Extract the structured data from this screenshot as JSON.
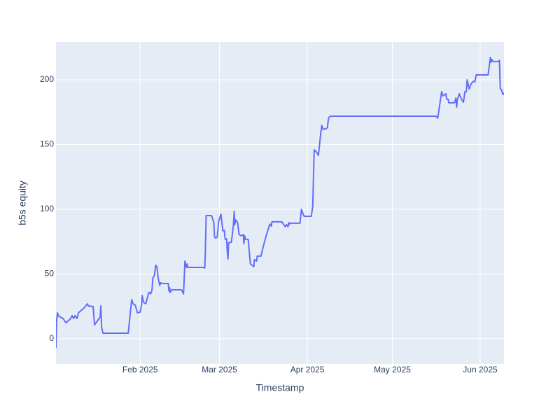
{
  "chart_data": {
    "type": "line",
    "x_label": "Timestamp",
    "y_label": "b5s equity",
    "xlim": [
      1.3,
      159.4
    ],
    "ylim": [
      -19.5,
      229.2
    ],
    "xticks": [
      {
        "value": 31,
        "label": "Feb 2025"
      },
      {
        "value": 59,
        "label": "Mar 2025"
      },
      {
        "value": 90,
        "label": "Apr 2025"
      },
      {
        "value": 120,
        "label": "May 2025"
      },
      {
        "value": 151,
        "label": "Jun 2025"
      }
    ],
    "yticks": [
      0,
      50,
      100,
      150,
      200
    ],
    "grid": true,
    "series": [
      {
        "color": "#636efa",
        "x": [
          1.3,
          1.5,
          1.8,
          2.3,
          3.8,
          4.8,
          6.3,
          7.0,
          7.5,
          8.0,
          8.7,
          9.2,
          11.2,
          12.4,
          12.7,
          14.4,
          14.9,
          16.9,
          17.1,
          17.4,
          17.9,
          26.8,
          28.0,
          28.5,
          29.3,
          30.0,
          31.0,
          31.5,
          31.7,
          32.2,
          33.0,
          34.0,
          34.2,
          34.7,
          35.2,
          35.5,
          36.0,
          36.5,
          36.9,
          37.4,
          37.9,
          38.2,
          38.9,
          40.9,
          41.2,
          41.4,
          41.6,
          42.1,
          45.6,
          46.3,
          46.8,
          47.3,
          47.6,
          47.8,
          53.3,
          53.8,
          54.0,
          54.3,
          56.2,
          57.0,
          57.2,
          57.5,
          58.2,
          58.7,
          59.5,
          60.2,
          60.7,
          61.0,
          61.5,
          61.7,
          62.0,
          62.2,
          63.2,
          63.9,
          64.2,
          64.4,
          64.7,
          65.4,
          65.9,
          66.6,
          67.4,
          67.6,
          67.9,
          68.1,
          69.1,
          69.9,
          71.1,
          71.3,
          72.1,
          72.3,
          73.6,
          74.6,
          75.6,
          76.3,
          76.8,
          77.3,
          77.5,
          81.0,
          81.7,
          82.2,
          82.7,
          83.2,
          83.5,
          83.7,
          84.0,
          87.4,
          87.9,
          88.4,
          88.9,
          91.4,
          91.9,
          92.1,
          92.4,
          93.4,
          93.9,
          94.6,
          95.1,
          95.6,
          96.6,
          97.1,
          97.3,
          97.6,
          98.1,
          135.5,
          136.0,
          136.2,
          137.4,
          137.9,
          138.9,
          139.2,
          139.7,
          139.9,
          141.9,
          142.4,
          142.7,
          142.9,
          143.6,
          144.4,
          145.1,
          145.6,
          146.1,
          146.4,
          147.1,
          147.8,
          148.6,
          149.1,
          149.6,
          153.8,
          154.6,
          154.8,
          155.1,
          155.6,
          157.5,
          157.8,
          158.1,
          158.5,
          159.0,
          159.3,
          159.4
        ],
        "values": [
          -7.0,
          13.0,
          20.0,
          17.3,
          15.7,
          12.4,
          15.1,
          17.8,
          15.7,
          17.8,
          15.7,
          20.0,
          23.8,
          27.0,
          25.4,
          24.9,
          10.8,
          16.8,
          25.4,
          8.6,
          4.3,
          4.3,
          30.3,
          27.0,
          25.9,
          20.0,
          20.5,
          26.5,
          33.5,
          28.1,
          27.0,
          35.7,
          35.7,
          34.6,
          37.8,
          47.0,
          48.6,
          56.8,
          55.7,
          46.5,
          41.1,
          43.2,
          42.7,
          42.7,
          36.8,
          39.5,
          35.7,
          37.8,
          37.8,
          34.6,
          60.0,
          55.1,
          57.8,
          55.1,
          55.1,
          54.6,
          65.9,
          95.1,
          95.1,
          89.7,
          79.5,
          77.8,
          78.4,
          90.8,
          96.2,
          83.2,
          83.8,
          76.8,
          77.3,
          68.6,
          61.6,
          74.1,
          74.6,
          87.6,
          98.4,
          88.1,
          91.9,
          89.7,
          80.5,
          79.5,
          80.5,
          73.5,
          79.5,
          76.8,
          76.8,
          57.8,
          55.7,
          61.1,
          60.0,
          63.8,
          63.8,
          72.4,
          80.5,
          85.4,
          88.6,
          87.0,
          90.3,
          90.3,
          88.1,
          86.5,
          88.1,
          86.5,
          89.7,
          88.6,
          89.2,
          89.2,
          100.0,
          96.8,
          94.6,
          94.6,
          102.2,
          120.0,
          145.9,
          143.8,
          141.6,
          156.2,
          164.9,
          161.6,
          162.2,
          163.2,
          167.6,
          170.8,
          171.9,
          171.9,
          170.3,
          173.0,
          190.8,
          187.6,
          189.2,
          184.9,
          184.9,
          182.2,
          182.2,
          185.9,
          178.9,
          184.3,
          189.2,
          184.9,
          182.7,
          190.8,
          190.8,
          200.0,
          193.0,
          196.8,
          198.9,
          198.4,
          203.8,
          203.8,
          217.3,
          213.5,
          215.7,
          214.1,
          214.1,
          215.1,
          193.0,
          192.4,
          188.6,
          189.7,
          188.6
        ]
      }
    ]
  }
}
